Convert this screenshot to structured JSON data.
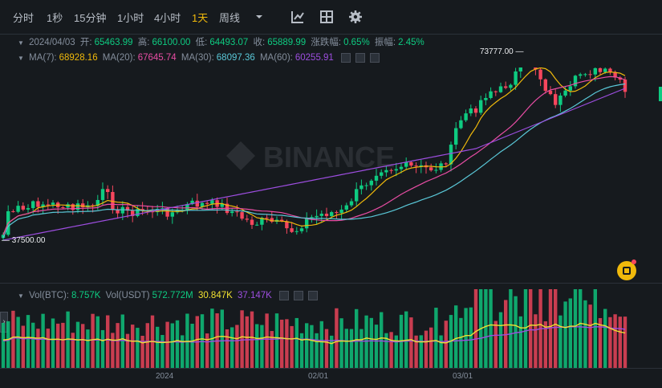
{
  "toolbar": {
    "intervals": [
      "分时",
      "1秒",
      "15分钟",
      "1小时",
      "4小时",
      "1天",
      "周线"
    ],
    "active": "1天",
    "more_icon": "chevron-down-icon",
    "icons": [
      "indicators-icon",
      "layout-grid-icon",
      "settings-gear-icon"
    ]
  },
  "legend": {
    "date": "2024/04/03",
    "open_label": "开:",
    "open": "65463.99",
    "high_label": "高:",
    "high": "66100.00",
    "low_label": "低:",
    "low": "64493.07",
    "close_label": "收:",
    "close": "65889.99",
    "change_label": "涨跌幅:",
    "change": "0.65%",
    "amp_label": "振幅:",
    "amp": "2.45%"
  },
  "ma": {
    "ma7_label": "MA(7):",
    "ma7": "68928.16",
    "ma20_label": "MA(20):",
    "ma20": "67645.74",
    "ma30_label": "MA(30):",
    "ma30": "68097.36",
    "ma60_label": "MA(60):",
    "ma60": "60255.91"
  },
  "vol": {
    "btc_label": "Vol(BTC):",
    "btc": "8.757K",
    "usdt_label": "Vol(USDT)",
    "usdt": "572.772M",
    "v1": "30.847K",
    "v2": "37.147K"
  },
  "annotations": {
    "high": "73777.00",
    "low": "37500.00"
  },
  "watermark": "BINANCE",
  "xaxis": [
    "2024",
    "02/01",
    "03/01"
  ],
  "colors": {
    "up": "#0ecb81",
    "down": "#f6465d",
    "ma7": "#f0b90b",
    "ma20": "#e84da4",
    "ma30": "#5ac8d8",
    "ma60": "#9d4ee0",
    "volma": "#f0e030",
    "volma2": "#9d4ee0",
    "accent": "#f0b90b"
  }
}
